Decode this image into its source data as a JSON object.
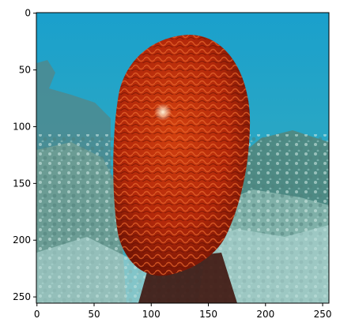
{
  "colors": {
    "frame": "#000000",
    "water_top": "#1a9fc9",
    "water_bottom": "#3aa5b8",
    "coral_red": "#b8280a",
    "coral_dark": "#6e1204",
    "coral_highlight": "#e85a26",
    "reef_light": "#c6e3e0",
    "reef_mid": "#6f9a92",
    "reef_dark": "#2c5a5c"
  },
  "image": {
    "width": 256,
    "height": 256,
    "content": "brain coral underwater photo"
  },
  "axes": {
    "x_ticks": [
      {
        "value": 0,
        "label": "0"
      },
      {
        "value": 50,
        "label": "50"
      },
      {
        "value": 100,
        "label": "100"
      },
      {
        "value": 150,
        "label": "150"
      },
      {
        "value": 200,
        "label": "200"
      },
      {
        "value": 250,
        "label": "250"
      }
    ],
    "y_ticks": [
      {
        "value": 0,
        "label": "0"
      },
      {
        "value": 50,
        "label": "50"
      },
      {
        "value": 100,
        "label": "100"
      },
      {
        "value": 150,
        "label": "150"
      },
      {
        "value": 200,
        "label": "200"
      },
      {
        "value": 250,
        "label": "250"
      }
    ]
  }
}
